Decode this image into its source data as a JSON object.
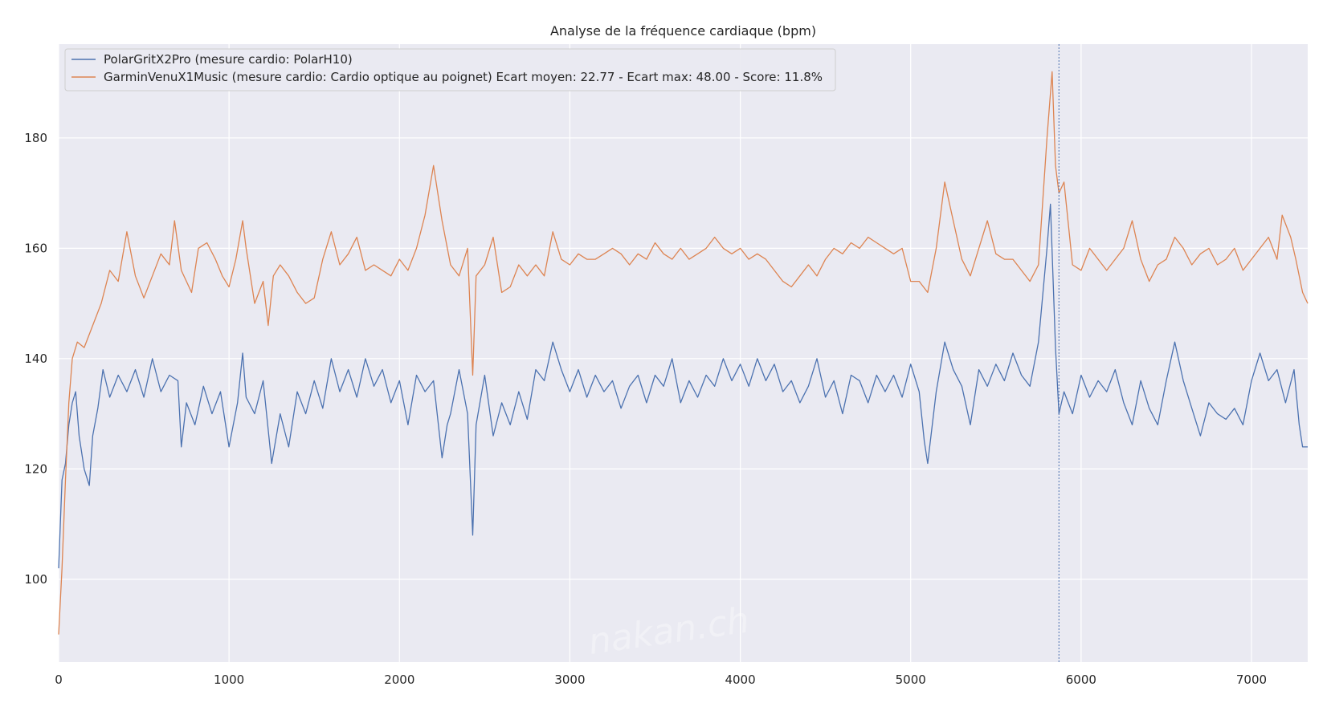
{
  "chart_data": {
    "type": "line",
    "title": "Analyse de la fréquence cardiaque (bpm)",
    "xlabel": "",
    "ylabel": "",
    "xlim": [
      0,
      7330
    ],
    "ylim": [
      85,
      197
    ],
    "x_ticks": [
      0,
      1000,
      2000,
      3000,
      4000,
      5000,
      6000,
      7000
    ],
    "y_ticks": [
      100,
      120,
      140,
      160,
      180
    ],
    "grid": true,
    "legend_position": "top-left",
    "vertical_marker_x": 5870,
    "watermark": "nakan.ch",
    "series": [
      {
        "name": "PolarGritX2Pro (mesure cardio: PolarH10)",
        "color": "#4c72b0",
        "points": [
          [
            0,
            102
          ],
          [
            20,
            118
          ],
          [
            40,
            121
          ],
          [
            60,
            128
          ],
          [
            80,
            132
          ],
          [
            100,
            134
          ],
          [
            120,
            126
          ],
          [
            150,
            120
          ],
          [
            180,
            117
          ],
          [
            200,
            126
          ],
          [
            230,
            131
          ],
          [
            260,
            138
          ],
          [
            300,
            133
          ],
          [
            350,
            137
          ],
          [
            400,
            134
          ],
          [
            450,
            138
          ],
          [
            500,
            133
          ],
          [
            550,
            140
          ],
          [
            600,
            134
          ],
          [
            650,
            137
          ],
          [
            700,
            136
          ],
          [
            720,
            124
          ],
          [
            750,
            132
          ],
          [
            800,
            128
          ],
          [
            850,
            135
          ],
          [
            900,
            130
          ],
          [
            950,
            134
          ],
          [
            1000,
            124
          ],
          [
            1050,
            132
          ],
          [
            1080,
            141
          ],
          [
            1100,
            133
          ],
          [
            1150,
            130
          ],
          [
            1200,
            136
          ],
          [
            1250,
            121
          ],
          [
            1300,
            130
          ],
          [
            1350,
            124
          ],
          [
            1400,
            134
          ],
          [
            1450,
            130
          ],
          [
            1500,
            136
          ],
          [
            1550,
            131
          ],
          [
            1600,
            140
          ],
          [
            1650,
            134
          ],
          [
            1700,
            138
          ],
          [
            1750,
            133
          ],
          [
            1800,
            140
          ],
          [
            1850,
            135
          ],
          [
            1900,
            138
          ],
          [
            1950,
            132
          ],
          [
            2000,
            136
          ],
          [
            2050,
            128
          ],
          [
            2100,
            137
          ],
          [
            2150,
            134
          ],
          [
            2200,
            136
          ],
          [
            2250,
            122
          ],
          [
            2280,
            128
          ],
          [
            2300,
            130
          ],
          [
            2350,
            138
          ],
          [
            2400,
            130
          ],
          [
            2430,
            108
          ],
          [
            2450,
            128
          ],
          [
            2500,
            137
          ],
          [
            2550,
            126
          ],
          [
            2600,
            132
          ],
          [
            2650,
            128
          ],
          [
            2700,
            134
          ],
          [
            2750,
            129
          ],
          [
            2800,
            138
          ],
          [
            2850,
            136
          ],
          [
            2900,
            143
          ],
          [
            2950,
            138
          ],
          [
            3000,
            134
          ],
          [
            3050,
            138
          ],
          [
            3100,
            133
          ],
          [
            3150,
            137
          ],
          [
            3200,
            134
          ],
          [
            3250,
            136
          ],
          [
            3300,
            131
          ],
          [
            3350,
            135
          ],
          [
            3400,
            137
          ],
          [
            3450,
            132
          ],
          [
            3500,
            137
          ],
          [
            3550,
            135
          ],
          [
            3600,
            140
          ],
          [
            3650,
            132
          ],
          [
            3700,
            136
          ],
          [
            3750,
            133
          ],
          [
            3800,
            137
          ],
          [
            3850,
            135
          ],
          [
            3900,
            140
          ],
          [
            3950,
            136
          ],
          [
            4000,
            139
          ],
          [
            4050,
            135
          ],
          [
            4100,
            140
          ],
          [
            4150,
            136
          ],
          [
            4200,
            139
          ],
          [
            4250,
            134
          ],
          [
            4300,
            136
          ],
          [
            4350,
            132
          ],
          [
            4400,
            135
          ],
          [
            4450,
            140
          ],
          [
            4500,
            133
          ],
          [
            4550,
            136
          ],
          [
            4600,
            130
          ],
          [
            4650,
            137
          ],
          [
            4700,
            136
          ],
          [
            4750,
            132
          ],
          [
            4800,
            137
          ],
          [
            4850,
            134
          ],
          [
            4900,
            137
          ],
          [
            4950,
            133
          ],
          [
            5000,
            139
          ],
          [
            5050,
            134
          ],
          [
            5080,
            125
          ],
          [
            5100,
            121
          ],
          [
            5150,
            134
          ],
          [
            5200,
            143
          ],
          [
            5250,
            138
          ],
          [
            5300,
            135
          ],
          [
            5350,
            128
          ],
          [
            5400,
            138
          ],
          [
            5450,
            135
          ],
          [
            5500,
            139
          ],
          [
            5550,
            136
          ],
          [
            5600,
            141
          ],
          [
            5650,
            137
          ],
          [
            5700,
            135
          ],
          [
            5750,
            143
          ],
          [
            5800,
            160
          ],
          [
            5820,
            168
          ],
          [
            5850,
            142
          ],
          [
            5870,
            130
          ],
          [
            5900,
            134
          ],
          [
            5950,
            130
          ],
          [
            6000,
            137
          ],
          [
            6050,
            133
          ],
          [
            6100,
            136
          ],
          [
            6150,
            134
          ],
          [
            6200,
            138
          ],
          [
            6250,
            132
          ],
          [
            6300,
            128
          ],
          [
            6350,
            136
          ],
          [
            6400,
            131
          ],
          [
            6450,
            128
          ],
          [
            6500,
            136
          ],
          [
            6550,
            143
          ],
          [
            6600,
            136
          ],
          [
            6650,
            131
          ],
          [
            6700,
            126
          ],
          [
            6750,
            132
          ],
          [
            6800,
            130
          ],
          [
            6850,
            129
          ],
          [
            6900,
            131
          ],
          [
            6950,
            128
          ],
          [
            7000,
            136
          ],
          [
            7050,
            141
          ],
          [
            7100,
            136
          ],
          [
            7150,
            138
          ],
          [
            7200,
            132
          ],
          [
            7250,
            138
          ],
          [
            7280,
            128
          ],
          [
            7300,
            124
          ],
          [
            7330,
            124
          ]
        ]
      },
      {
        "name": "GarminVenuX1Music (mesure cardio: Cardio optique au poignet) Ecart moyen: 22.77 - Ecart max: 48.00 - Score: 11.8%",
        "color": "#dd8452",
        "points": [
          [
            0,
            90
          ],
          [
            20,
            102
          ],
          [
            40,
            118
          ],
          [
            60,
            132
          ],
          [
            80,
            140
          ],
          [
            110,
            143
          ],
          [
            150,
            142
          ],
          [
            200,
            146
          ],
          [
            250,
            150
          ],
          [
            300,
            156
          ],
          [
            350,
            154
          ],
          [
            400,
            163
          ],
          [
            450,
            155
          ],
          [
            500,
            151
          ],
          [
            550,
            155
          ],
          [
            600,
            159
          ],
          [
            650,
            157
          ],
          [
            680,
            165
          ],
          [
            720,
            156
          ],
          [
            780,
            152
          ],
          [
            820,
            160
          ],
          [
            870,
            161
          ],
          [
            920,
            158
          ],
          [
            960,
            155
          ],
          [
            1000,
            153
          ],
          [
            1040,
            158
          ],
          [
            1080,
            165
          ],
          [
            1100,
            160
          ],
          [
            1150,
            150
          ],
          [
            1200,
            154
          ],
          [
            1230,
            146
          ],
          [
            1260,
            155
          ],
          [
            1300,
            157
          ],
          [
            1350,
            155
          ],
          [
            1400,
            152
          ],
          [
            1450,
            150
          ],
          [
            1500,
            151
          ],
          [
            1550,
            158
          ],
          [
            1600,
            163
          ],
          [
            1650,
            157
          ],
          [
            1700,
            159
          ],
          [
            1750,
            162
          ],
          [
            1800,
            156
          ],
          [
            1850,
            157
          ],
          [
            1900,
            156
          ],
          [
            1950,
            155
          ],
          [
            2000,
            158
          ],
          [
            2050,
            156
          ],
          [
            2100,
            160
          ],
          [
            2150,
            166
          ],
          [
            2200,
            175
          ],
          [
            2250,
            165
          ],
          [
            2300,
            157
          ],
          [
            2350,
            155
          ],
          [
            2400,
            160
          ],
          [
            2430,
            137
          ],
          [
            2450,
            155
          ],
          [
            2500,
            157
          ],
          [
            2550,
            162
          ],
          [
            2600,
            152
          ],
          [
            2650,
            153
          ],
          [
            2700,
            157
          ],
          [
            2750,
            155
          ],
          [
            2800,
            157
          ],
          [
            2850,
            155
          ],
          [
            2900,
            163
          ],
          [
            2950,
            158
          ],
          [
            3000,
            157
          ],
          [
            3050,
            159
          ],
          [
            3100,
            158
          ],
          [
            3150,
            158
          ],
          [
            3200,
            159
          ],
          [
            3250,
            160
          ],
          [
            3300,
            159
          ],
          [
            3350,
            157
          ],
          [
            3400,
            159
          ],
          [
            3450,
            158
          ],
          [
            3500,
            161
          ],
          [
            3550,
            159
          ],
          [
            3600,
            158
          ],
          [
            3650,
            160
          ],
          [
            3700,
            158
          ],
          [
            3750,
            159
          ],
          [
            3800,
            160
          ],
          [
            3850,
            162
          ],
          [
            3900,
            160
          ],
          [
            3950,
            159
          ],
          [
            4000,
            160
          ],
          [
            4050,
            158
          ],
          [
            4100,
            159
          ],
          [
            4150,
            158
          ],
          [
            4200,
            156
          ],
          [
            4250,
            154
          ],
          [
            4300,
            153
          ],
          [
            4350,
            155
          ],
          [
            4400,
            157
          ],
          [
            4450,
            155
          ],
          [
            4500,
            158
          ],
          [
            4550,
            160
          ],
          [
            4600,
            159
          ],
          [
            4650,
            161
          ],
          [
            4700,
            160
          ],
          [
            4750,
            162
          ],
          [
            4800,
            161
          ],
          [
            4850,
            160
          ],
          [
            4900,
            159
          ],
          [
            4950,
            160
          ],
          [
            5000,
            154
          ],
          [
            5050,
            154
          ],
          [
            5100,
            152
          ],
          [
            5150,
            160
          ],
          [
            5200,
            172
          ],
          [
            5250,
            165
          ],
          [
            5300,
            158
          ],
          [
            5350,
            155
          ],
          [
            5400,
            160
          ],
          [
            5450,
            165
          ],
          [
            5500,
            159
          ],
          [
            5550,
            158
          ],
          [
            5600,
            158
          ],
          [
            5650,
            156
          ],
          [
            5700,
            154
          ],
          [
            5750,
            157
          ],
          [
            5800,
            180
          ],
          [
            5830,
            192
          ],
          [
            5850,
            175
          ],
          [
            5870,
            170
          ],
          [
            5900,
            172
          ],
          [
            5950,
            157
          ],
          [
            6000,
            156
          ],
          [
            6050,
            160
          ],
          [
            6100,
            158
          ],
          [
            6150,
            156
          ],
          [
            6200,
            158
          ],
          [
            6250,
            160
          ],
          [
            6300,
            165
          ],
          [
            6350,
            158
          ],
          [
            6400,
            154
          ],
          [
            6450,
            157
          ],
          [
            6500,
            158
          ],
          [
            6550,
            162
          ],
          [
            6600,
            160
          ],
          [
            6650,
            157
          ],
          [
            6700,
            159
          ],
          [
            6750,
            160
          ],
          [
            6800,
            157
          ],
          [
            6850,
            158
          ],
          [
            6900,
            160
          ],
          [
            6950,
            156
          ],
          [
            7000,
            158
          ],
          [
            7050,
            160
          ],
          [
            7100,
            162
          ],
          [
            7150,
            158
          ],
          [
            7180,
            166
          ],
          [
            7230,
            162
          ],
          [
            7260,
            158
          ],
          [
            7300,
            152
          ],
          [
            7330,
            150
          ]
        ]
      }
    ]
  }
}
